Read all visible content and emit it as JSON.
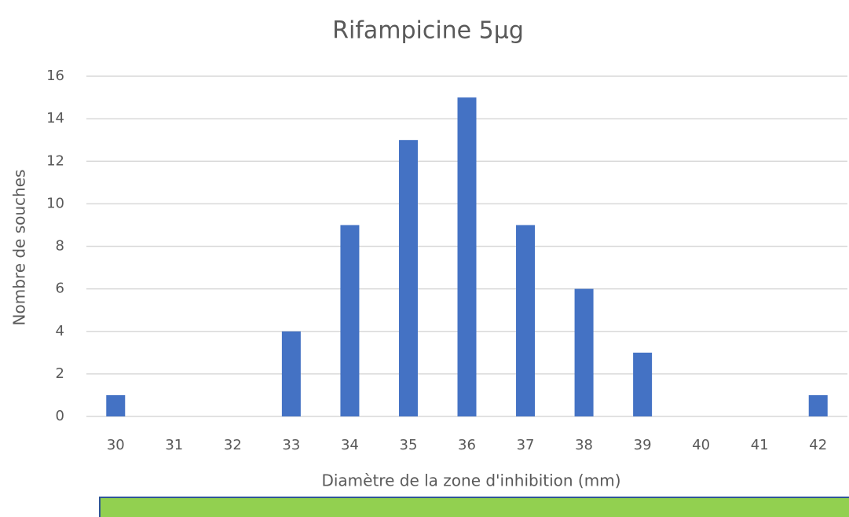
{
  "chart_data": {
    "type": "bar",
    "title": "Rifampicine 5µg",
    "x_label": "Diamètre de la zone d'inhibition (mm)",
    "y_label": "Nombre de souches",
    "categories": [
      "30",
      "31",
      "32",
      "33",
      "34",
      "35",
      "36",
      "37",
      "38",
      "39",
      "40",
      "41",
      "42"
    ],
    "values": [
      1,
      0,
      0,
      4,
      9,
      13,
      15,
      9,
      6,
      3,
      0,
      0,
      1
    ],
    "color": "#4472c4",
    "ylim": [
      0,
      16
    ],
    "yticks": [
      0,
      2,
      4,
      6,
      8,
      10,
      12,
      14,
      16
    ],
    "grid": true
  }
}
